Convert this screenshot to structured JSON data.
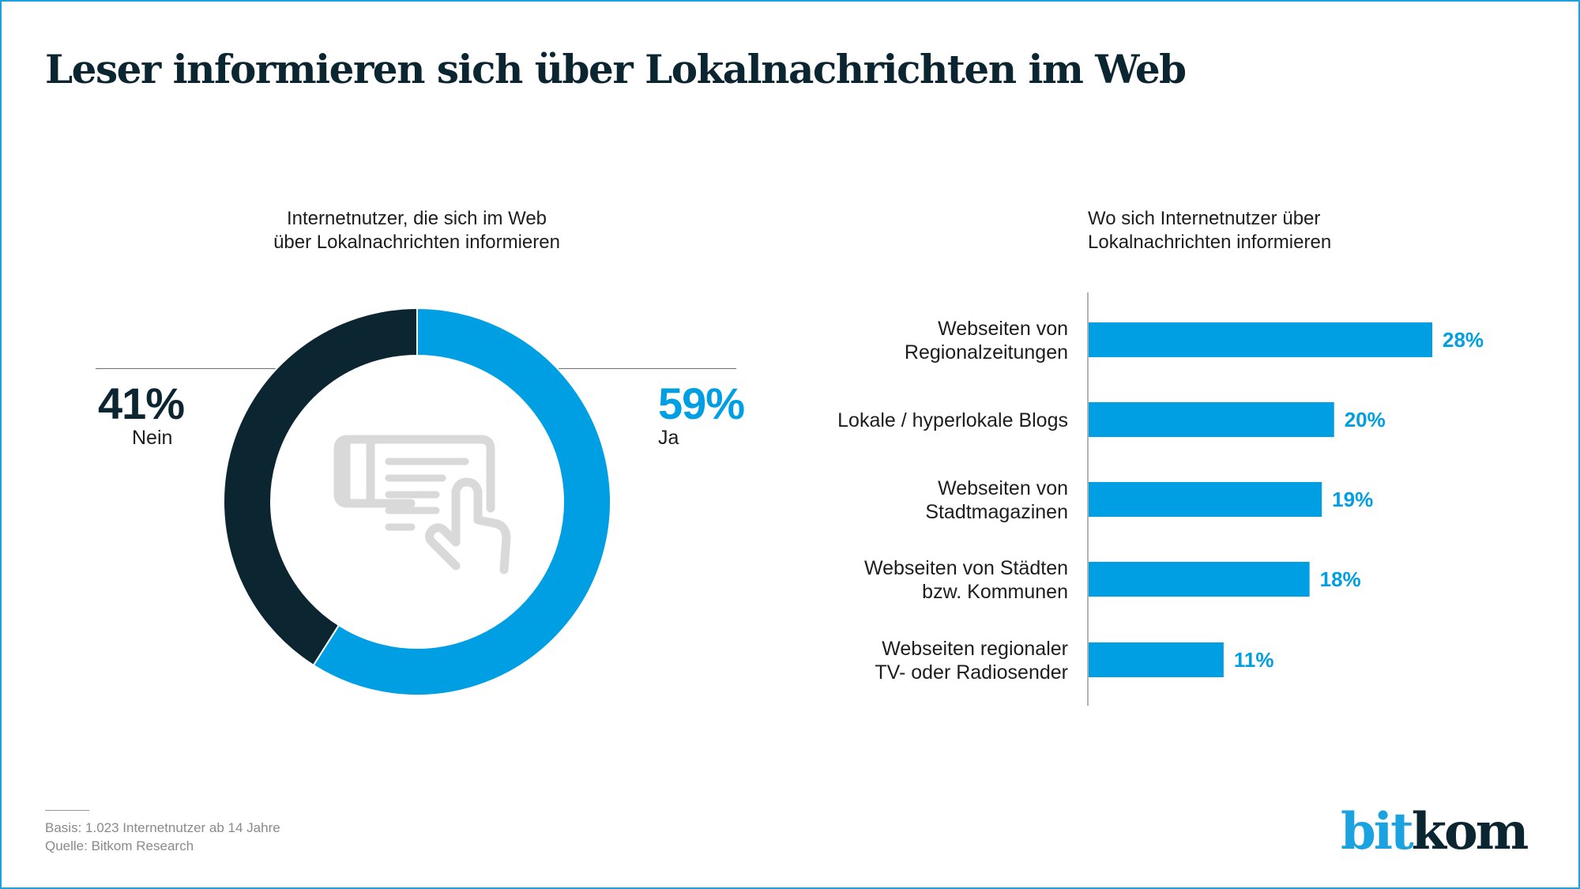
{
  "title": "Leser informieren sich über Lokalnachrichten im Web",
  "colors": {
    "accent": "#009fe3",
    "dark": "#0b2631",
    "icon_gray": "#d9d9d9",
    "axis": "#b3b3b3",
    "frame": "#1aa3e0"
  },
  "center_icon": "tablet-touch-news-icon",
  "footnote": {
    "basis": "Basis: 1.023 Internetnutzer ab 14 Jahre",
    "source": "Quelle: Bitkom Research"
  },
  "logo": {
    "part1": "bit",
    "part2": "kom"
  },
  "chart_data": [
    {
      "type": "pie",
      "variant": "donut",
      "title_line1": "Internetnutzer, die sich im Web",
      "title_line2": "über Lokalnachrichten informieren",
      "slices": [
        {
          "label": "Ja",
          "value": 59,
          "value_label": "59%",
          "color": "#009fe3"
        },
        {
          "label": "Nein",
          "value": 41,
          "value_label": "41%",
          "color": "#0b2631"
        }
      ],
      "unit": "%"
    },
    {
      "type": "bar",
      "orientation": "horizontal",
      "title_line1": "Wo sich Internetnutzer über",
      "title_line2": "Lokalnachrichten informieren",
      "categories": [
        [
          "Webseiten von",
          "Regionalzeitungen"
        ],
        [
          "Lokale / hyperlokale Blogs"
        ],
        [
          "Webseiten von",
          "Stadtmagazinen"
        ],
        [
          "Webseiten von Städten",
          "bzw. Kommunen"
        ],
        [
          "Webseiten regionaler",
          "TV- oder Radiosender"
        ]
      ],
      "values": [
        28,
        20,
        19,
        18,
        11
      ],
      "value_labels": [
        "28%",
        "20%",
        "19%",
        "18%",
        "11%"
      ],
      "unit": "%",
      "xlim": [
        0,
        30
      ],
      "grid": false,
      "color": "#009fe3"
    }
  ]
}
